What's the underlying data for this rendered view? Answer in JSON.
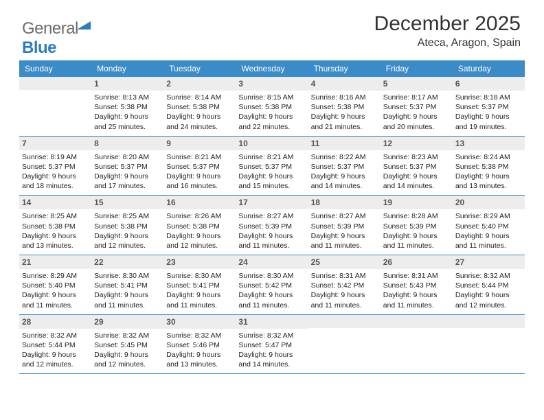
{
  "brand": {
    "part1": "General",
    "part2": "Blue"
  },
  "header": {
    "month": "December 2025",
    "location": "Ateca, Aragon, Spain"
  },
  "colors": {
    "header_bg": "#3b8bc8",
    "header_fg": "#ffffff",
    "daynum_bg": "#ededed",
    "border": "#3b8bc8",
    "brand_blue": "#2d7cc1",
    "text": "#222222"
  },
  "day_names": [
    "Sunday",
    "Monday",
    "Tuesday",
    "Wednesday",
    "Thursday",
    "Friday",
    "Saturday"
  ],
  "weeks": [
    [
      {
        "blank": true
      },
      {
        "n": "1",
        "sunrise": "8:13 AM",
        "sunset": "5:38 PM",
        "dl1": "Daylight: 9 hours",
        "dl2": "and 25 minutes."
      },
      {
        "n": "2",
        "sunrise": "8:14 AM",
        "sunset": "5:38 PM",
        "dl1": "Daylight: 9 hours",
        "dl2": "and 24 minutes."
      },
      {
        "n": "3",
        "sunrise": "8:15 AM",
        "sunset": "5:38 PM",
        "dl1": "Daylight: 9 hours",
        "dl2": "and 22 minutes."
      },
      {
        "n": "4",
        "sunrise": "8:16 AM",
        "sunset": "5:38 PM",
        "dl1": "Daylight: 9 hours",
        "dl2": "and 21 minutes."
      },
      {
        "n": "5",
        "sunrise": "8:17 AM",
        "sunset": "5:37 PM",
        "dl1": "Daylight: 9 hours",
        "dl2": "and 20 minutes."
      },
      {
        "n": "6",
        "sunrise": "8:18 AM",
        "sunset": "5:37 PM",
        "dl1": "Daylight: 9 hours",
        "dl2": "and 19 minutes."
      }
    ],
    [
      {
        "n": "7",
        "sunrise": "8:19 AM",
        "sunset": "5:37 PM",
        "dl1": "Daylight: 9 hours",
        "dl2": "and 18 minutes."
      },
      {
        "n": "8",
        "sunrise": "8:20 AM",
        "sunset": "5:37 PM",
        "dl1": "Daylight: 9 hours",
        "dl2": "and 17 minutes."
      },
      {
        "n": "9",
        "sunrise": "8:21 AM",
        "sunset": "5:37 PM",
        "dl1": "Daylight: 9 hours",
        "dl2": "and 16 minutes."
      },
      {
        "n": "10",
        "sunrise": "8:21 AM",
        "sunset": "5:37 PM",
        "dl1": "Daylight: 9 hours",
        "dl2": "and 15 minutes."
      },
      {
        "n": "11",
        "sunrise": "8:22 AM",
        "sunset": "5:37 PM",
        "dl1": "Daylight: 9 hours",
        "dl2": "and 14 minutes."
      },
      {
        "n": "12",
        "sunrise": "8:23 AM",
        "sunset": "5:37 PM",
        "dl1": "Daylight: 9 hours",
        "dl2": "and 14 minutes."
      },
      {
        "n": "13",
        "sunrise": "8:24 AM",
        "sunset": "5:38 PM",
        "dl1": "Daylight: 9 hours",
        "dl2": "and 13 minutes."
      }
    ],
    [
      {
        "n": "14",
        "sunrise": "8:25 AM",
        "sunset": "5:38 PM",
        "dl1": "Daylight: 9 hours",
        "dl2": "and 13 minutes."
      },
      {
        "n": "15",
        "sunrise": "8:25 AM",
        "sunset": "5:38 PM",
        "dl1": "Daylight: 9 hours",
        "dl2": "and 12 minutes."
      },
      {
        "n": "16",
        "sunrise": "8:26 AM",
        "sunset": "5:38 PM",
        "dl1": "Daylight: 9 hours",
        "dl2": "and 12 minutes."
      },
      {
        "n": "17",
        "sunrise": "8:27 AM",
        "sunset": "5:39 PM",
        "dl1": "Daylight: 9 hours",
        "dl2": "and 11 minutes."
      },
      {
        "n": "18",
        "sunrise": "8:27 AM",
        "sunset": "5:39 PM",
        "dl1": "Daylight: 9 hours",
        "dl2": "and 11 minutes."
      },
      {
        "n": "19",
        "sunrise": "8:28 AM",
        "sunset": "5:39 PM",
        "dl1": "Daylight: 9 hours",
        "dl2": "and 11 minutes."
      },
      {
        "n": "20",
        "sunrise": "8:29 AM",
        "sunset": "5:40 PM",
        "dl1": "Daylight: 9 hours",
        "dl2": "and 11 minutes."
      }
    ],
    [
      {
        "n": "21",
        "sunrise": "8:29 AM",
        "sunset": "5:40 PM",
        "dl1": "Daylight: 9 hours",
        "dl2": "and 11 minutes."
      },
      {
        "n": "22",
        "sunrise": "8:30 AM",
        "sunset": "5:41 PM",
        "dl1": "Daylight: 9 hours",
        "dl2": "and 11 minutes."
      },
      {
        "n": "23",
        "sunrise": "8:30 AM",
        "sunset": "5:41 PM",
        "dl1": "Daylight: 9 hours",
        "dl2": "and 11 minutes."
      },
      {
        "n": "24",
        "sunrise": "8:30 AM",
        "sunset": "5:42 PM",
        "dl1": "Daylight: 9 hours",
        "dl2": "and 11 minutes."
      },
      {
        "n": "25",
        "sunrise": "8:31 AM",
        "sunset": "5:42 PM",
        "dl1": "Daylight: 9 hours",
        "dl2": "and 11 minutes."
      },
      {
        "n": "26",
        "sunrise": "8:31 AM",
        "sunset": "5:43 PM",
        "dl1": "Daylight: 9 hours",
        "dl2": "and 11 minutes."
      },
      {
        "n": "27",
        "sunrise": "8:32 AM",
        "sunset": "5:44 PM",
        "dl1": "Daylight: 9 hours",
        "dl2": "and 12 minutes."
      }
    ],
    [
      {
        "n": "28",
        "sunrise": "8:32 AM",
        "sunset": "5:44 PM",
        "dl1": "Daylight: 9 hours",
        "dl2": "and 12 minutes."
      },
      {
        "n": "29",
        "sunrise": "8:32 AM",
        "sunset": "5:45 PM",
        "dl1": "Daylight: 9 hours",
        "dl2": "and 12 minutes."
      },
      {
        "n": "30",
        "sunrise": "8:32 AM",
        "sunset": "5:46 PM",
        "dl1": "Daylight: 9 hours",
        "dl2": "and 13 minutes."
      },
      {
        "n": "31",
        "sunrise": "8:32 AM",
        "sunset": "5:47 PM",
        "dl1": "Daylight: 9 hours",
        "dl2": "and 14 minutes."
      },
      {
        "blank": true
      },
      {
        "blank": true
      },
      {
        "blank": true
      }
    ]
  ],
  "labels": {
    "sunrise": "Sunrise: ",
    "sunset": "Sunset: "
  }
}
